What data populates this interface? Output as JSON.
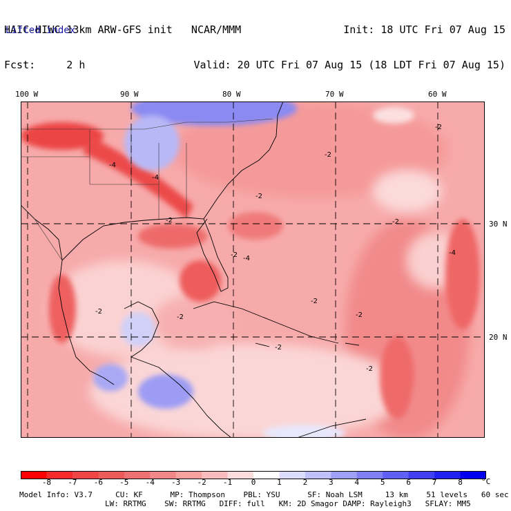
{
  "header": {
    "left_line1": "HAIC-HIWC 13km ARW-GFS init   NCAR/MMM",
    "left_line2": "Fcst:     2 h",
    "right_line1": "Init: 18 UTC Fri 07 Aug 15",
    "right_line2": "Valid: 20 UTC Fri 07 Aug 15 (18 LDT Fri 07 Aug 15)",
    "field": "Lifted index"
  },
  "map": {
    "lon_labels": [
      "100 W",
      "90 W",
      "80 W",
      "70 W",
      "60 W"
    ],
    "lat_labels": [
      "30 N",
      "20 N"
    ],
    "contour_labels": [
      "-4",
      "-4",
      "-4",
      "-2",
      "-2",
      "-2",
      "-2",
      "-2",
      "-2",
      "-2",
      "-2",
      "-2",
      "-4",
      "-2",
      "-2",
      "-2"
    ]
  },
  "colorbar": {
    "ticks": [
      "-8",
      "-7",
      "-6",
      "-5",
      "-4",
      "-3",
      "-2",
      "-1",
      "0",
      "1",
      "2",
      "3",
      "4",
      "5",
      "6",
      "7",
      "8"
    ],
    "unit": "°C",
    "colors": [
      "#ff0000",
      "#f52a2a",
      "#f04545",
      "#ec5a5a",
      "#ee7070",
      "#f28888",
      "#f6a0a0",
      "#f9bcbc",
      "#fcdcdc",
      "#ffffff",
      "#dcdcfc",
      "#c0c0fa",
      "#a0a0f8",
      "#8080f6",
      "#6060f4",
      "#4040f2",
      "#2020f0",
      "#0000ee"
    ]
  },
  "footer": {
    "line1": "Model Info: V3.7     CU: KF      MP: Thompson    PBL: YSU      SF: Noah LSM     13 km    51 levels   60 sec",
    "line2": "LW: RRTMG    SW: RRTMG   DIFF: full   KM: 2D Smagor DAMP: Rayleigh3   SFLAY: MM5"
  }
}
